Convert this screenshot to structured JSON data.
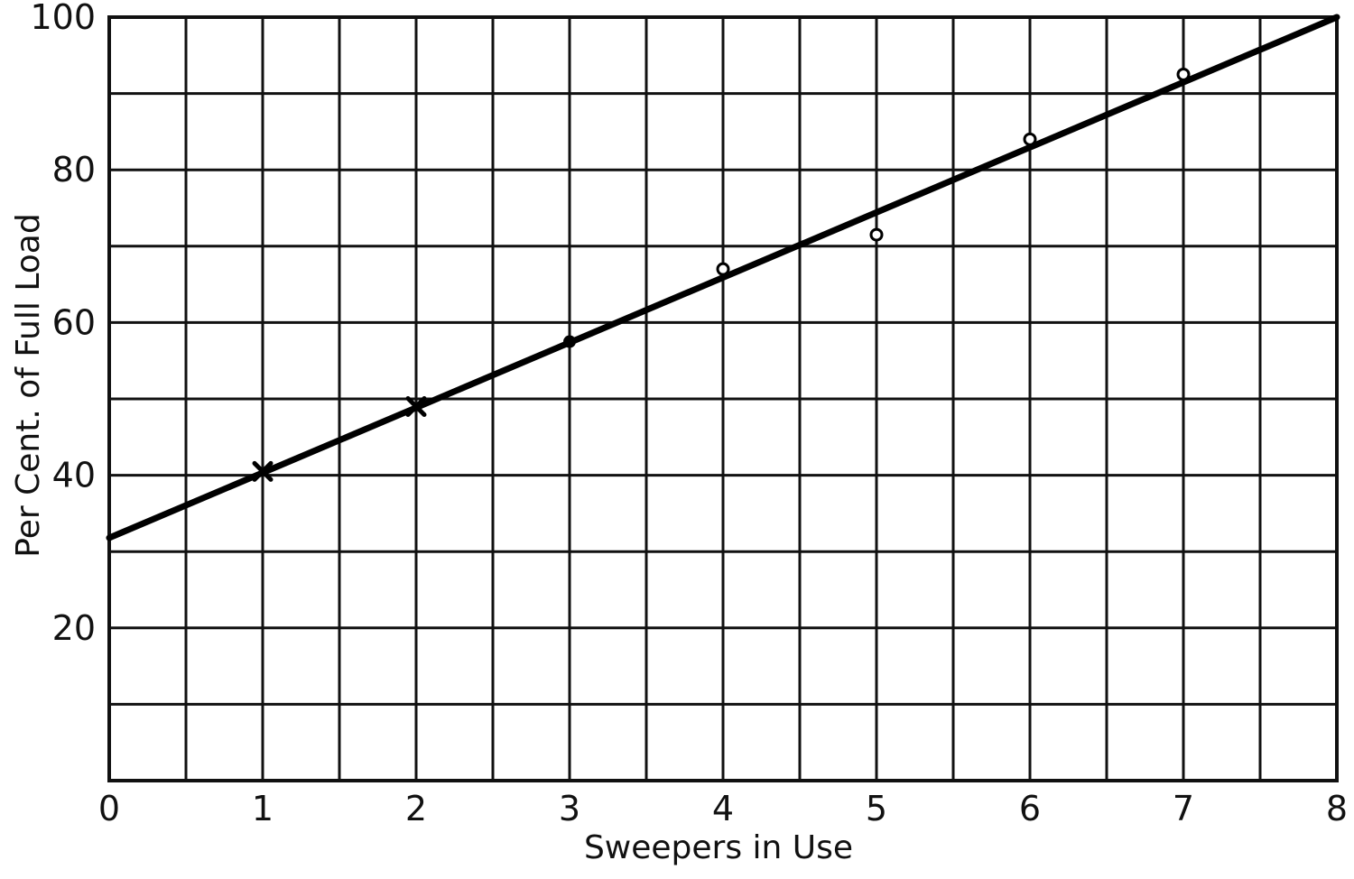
{
  "chart_data": {
    "type": "scatter",
    "title": "",
    "xlabel": "Sweepers in Use",
    "ylabel": "Per Cent. of Full Load",
    "xlim": [
      0,
      8
    ],
    "ylim": [
      0,
      100
    ],
    "x_ticks": [
      "0",
      "1",
      "2",
      "3",
      "4",
      "5",
      "6",
      "7",
      "8"
    ],
    "y_ticks": [
      "20",
      "40",
      "60",
      "80",
      "100"
    ],
    "grid": true,
    "series": [
      {
        "marker": "x",
        "points": [
          {
            "x": 1,
            "y": 40.5
          },
          {
            "x": 2,
            "y": 49
          }
        ]
      },
      {
        "marker": "dot",
        "points": [
          {
            "x": 3,
            "y": 57.5
          }
        ]
      },
      {
        "marker": "circle",
        "points": [
          {
            "x": 4,
            "y": 67
          },
          {
            "x": 5,
            "y": 71.5
          },
          {
            "x": 6,
            "y": 84
          },
          {
            "x": 7,
            "y": 92.5
          }
        ]
      }
    ],
    "trend_line": {
      "points": [
        {
          "x": 0,
          "y": 31.8
        },
        {
          "x": 8,
          "y": 100
        }
      ]
    }
  }
}
